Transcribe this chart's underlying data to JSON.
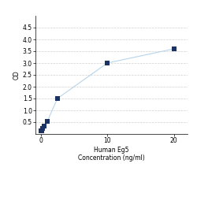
{
  "x_data": [
    0.0625,
    0.125,
    0.25,
    0.5,
    1,
    2.5,
    10,
    20
  ],
  "y_data": [
    0.12,
    0.15,
    0.22,
    0.35,
    0.55,
    1.5,
    3.0,
    3.6
  ],
  "line_color": "#b8d4ea",
  "marker_color": "#1a3264",
  "marker_size": 4,
  "xlabel_line1": "Human Eg5",
  "xlabel_line2": "Concentration (ng/ml)",
  "ylabel": "OD",
  "xlim": [
    -0.8,
    22
  ],
  "ylim": [
    0,
    5
  ],
  "yticks": [
    0.5,
    1.0,
    1.5,
    2.0,
    2.5,
    3.0,
    3.5,
    4.0,
    4.5
  ],
  "xticks": [
    0,
    10,
    20
  ],
  "grid_color": "#d0d0d0",
  "bg_color": "#ffffff",
  "tick_fontsize": 5.5,
  "label_fontsize": 5.5
}
